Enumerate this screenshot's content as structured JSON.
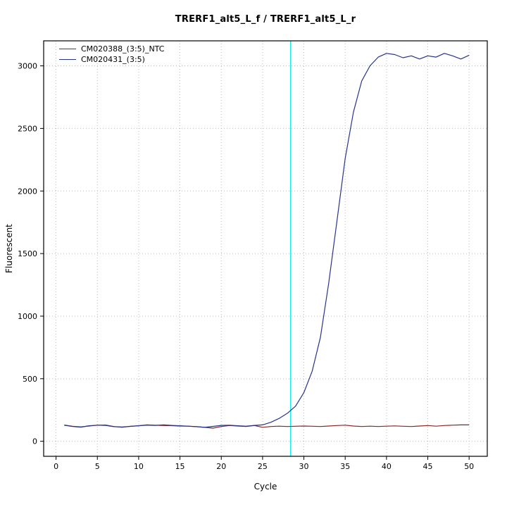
{
  "title": "TRERF1_alt5_L_f / TRERF1_alt5_L_r",
  "chart_data": {
    "type": "line",
    "title": "TRERF1_alt5_L_f / TRERF1_alt5_L_r",
    "xlabel": "Cycle",
    "ylabel": "Fluorescent",
    "xlim": [
      -1.5,
      52.2
    ],
    "ylim": [
      -120,
      3200
    ],
    "x_ticks": [
      0,
      5,
      10,
      15,
      20,
      25,
      30,
      35,
      40,
      45,
      50
    ],
    "y_ticks": [
      0,
      500,
      1000,
      1500,
      2000,
      2500,
      3000
    ],
    "grid": "dotted",
    "grid_color": "#BEBEBE",
    "threshold_line": {
      "x": 28.4,
      "color": "#00EEEE"
    },
    "x": [
      1,
      2,
      3,
      4,
      5,
      6,
      7,
      8,
      9,
      10,
      11,
      12,
      13,
      14,
      15,
      16,
      17,
      18,
      19,
      20,
      21,
      22,
      23,
      24,
      25,
      26,
      27,
      28,
      29,
      30,
      31,
      32,
      33,
      34,
      35,
      36,
      37,
      38,
      39,
      40,
      41,
      42,
      43,
      44,
      45,
      46,
      47,
      48,
      49,
      50
    ],
    "series": [
      {
        "name": "CM020388_(3:5)_NTC",
        "color": "#8B2323",
        "values": [
          130,
          120,
          115,
          122,
          128,
          130,
          118,
          112,
          120,
          124,
          131,
          128,
          126,
          125,
          122,
          120,
          117,
          111,
          105,
          118,
          126,
          122,
          118,
          126,
          112,
          118,
          121,
          118,
          120,
          122,
          120,
          118,
          122,
          126,
          129,
          122,
          118,
          121,
          118,
          121,
          123,
          120,
          118,
          122,
          126,
          121,
          126,
          129,
          131,
          131
        ]
      },
      {
        "name": "CM020431_(3:5)",
        "color": "#27348B",
        "values": [
          128,
          118,
          113,
          124,
          129,
          127,
          117,
          114,
          119,
          124,
          129,
          127,
          131,
          127,
          124,
          121,
          117,
          111,
          119,
          127,
          129,
          124,
          121,
          127,
          131,
          152,
          183,
          224,
          281,
          390,
          560,
          830,
          1260,
          1760,
          2260,
          2630,
          2880,
          3000,
          3070,
          3100,
          3090,
          3065,
          3080,
          3055,
          3080,
          3070,
          3100,
          3080,
          3055,
          3085
        ]
      }
    ]
  }
}
